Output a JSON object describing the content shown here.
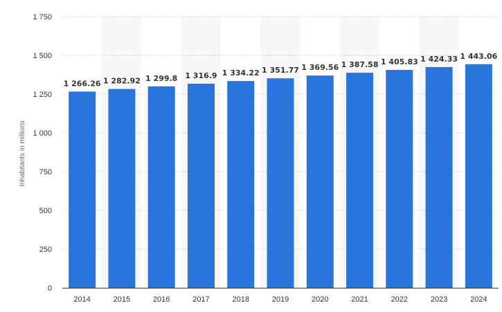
{
  "chart_data": {
    "type": "bar",
    "title": "",
    "xlabel": "",
    "ylabel": "Inhabitants in millions",
    "categories": [
      "2014",
      "2015",
      "2016",
      "2017",
      "2018",
      "2019",
      "2020",
      "2021",
      "2022",
      "2023",
      "2024"
    ],
    "values": [
      1266.26,
      1282.92,
      1299.8,
      1316.9,
      1334.22,
      1351.77,
      1369.56,
      1387.58,
      1405.83,
      1424.33,
      1443.06
    ],
    "data_labels": [
      "1 266.26",
      "1 282.92",
      "1 299.8",
      "1 316.9",
      "1 334.22",
      "1 351.77",
      "1 369.56",
      "1 387.58",
      "1 405.83",
      "1 424.33",
      "1 443.06"
    ],
    "ylim": [
      0,
      1750
    ],
    "yticks": [
      0,
      250,
      500,
      750,
      1000,
      1250,
      1500,
      1750
    ],
    "ytick_labels": [
      "0",
      "250",
      "500",
      "750",
      "1 000",
      "1 250",
      "1 500",
      "1 750"
    ],
    "grid": true,
    "legend": "none",
    "colors": {
      "bar": "#2775dd",
      "band": "#f7f7f7",
      "grid": "#cfcfcf",
      "axis": "#333333",
      "label": "#333333",
      "axis_title": "#666666"
    }
  }
}
